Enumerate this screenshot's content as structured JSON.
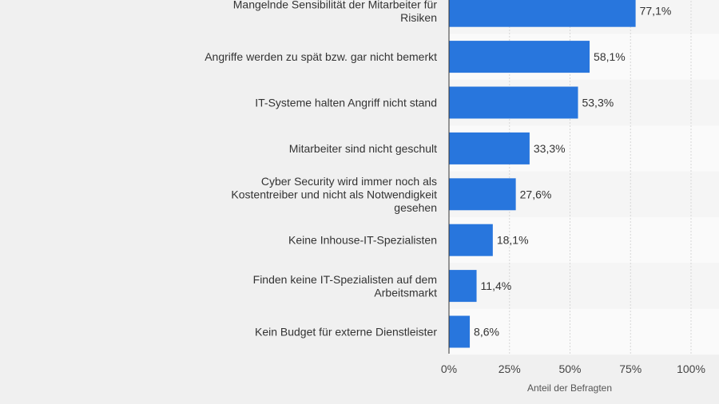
{
  "chart_data": {
    "type": "bar",
    "orientation": "horizontal",
    "categories": [
      "Mangelnde Sensibilität der Mitarbeiter für Risiken",
      "Angriffe werden zu spät bzw. gar nicht bemerkt",
      "IT-Systeme halten Angriff nicht stand",
      "Mitarbeiter sind nicht geschult",
      "Cyber Security wird immer noch als Kostentreiber und nicht als Notwendigkeit gesehen",
      "Keine Inhouse-IT-Spezialisten",
      "Finden keine IT-Spezialisten auf dem Arbeitsmarkt",
      "Kein Budget für externe Dienstleister"
    ],
    "category_lines": [
      [
        "Mangelnde Sensibilität der Mitarbeiter für",
        "Risiken"
      ],
      [
        "Angriffe werden zu spät bzw. gar nicht bemerkt"
      ],
      [
        "IT-Systeme halten Angriff nicht stand"
      ],
      [
        "Mitarbeiter sind nicht geschult"
      ],
      [
        "Cyber Security wird immer noch als",
        "Kostentreiber und nicht als Notwendigkeit",
        "gesehen"
      ],
      [
        "Keine Inhouse-IT-Spezialisten"
      ],
      [
        "Finden keine IT-Spezialisten auf dem",
        "Arbeitsmarkt"
      ],
      [
        "Kein Budget für externe Dienstleister"
      ]
    ],
    "values": [
      77.1,
      58.1,
      53.3,
      33.3,
      27.6,
      18.1,
      11.4,
      8.6
    ],
    "value_labels": [
      "77,1%",
      "58,1%",
      "53,3%",
      "33,3%",
      "27,6%",
      "18,1%",
      "11,4%",
      "8,6%"
    ],
    "xlim": [
      0,
      100
    ],
    "ticks": [
      0,
      25,
      50,
      75,
      100
    ],
    "tick_labels": [
      "0%",
      "25%",
      "50%",
      "75%",
      "100%"
    ],
    "xlabel": "Anteil der Befragten",
    "ylabel": "",
    "title": "",
    "grid": true,
    "bar_color": "#2876dd",
    "band_colors": [
      "#f5f5f5",
      "#fafafa"
    ]
  }
}
